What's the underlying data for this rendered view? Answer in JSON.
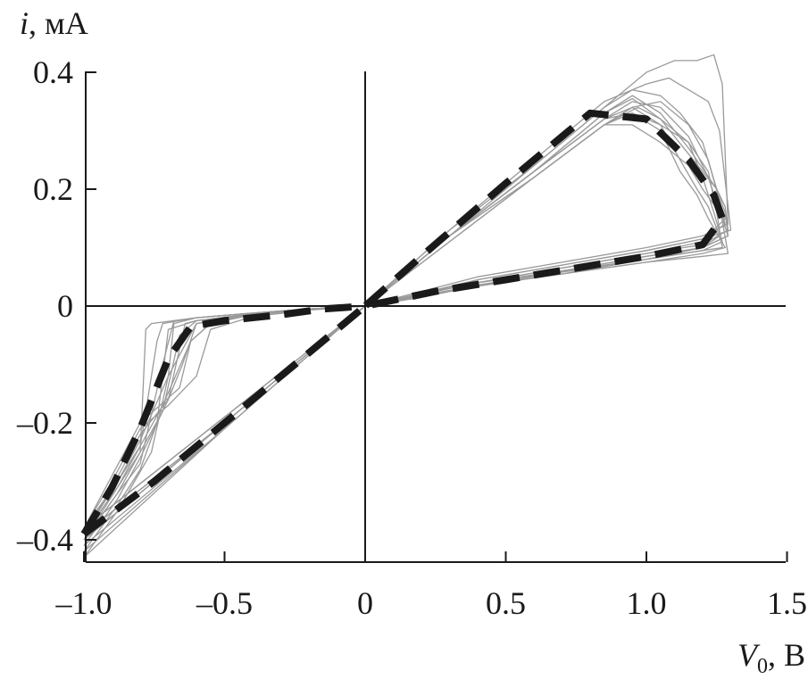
{
  "chart_data": {
    "type": "line",
    "title": "",
    "xlabel_var": "V",
    "xlabel_sub": "0",
    "xlabel_unit": ", В",
    "ylabel_var": "i",
    "ylabel_unit": ", мА",
    "xlim": [
      -1.0,
      1.5
    ],
    "ylim": [
      -0.44,
      0.4
    ],
    "x_ticks": [
      -1.0,
      -0.5,
      0,
      0.5,
      1.0,
      1.5
    ],
    "x_tick_labels": [
      "–1.0",
      "–0.5",
      "0",
      "0.5",
      "1.0",
      "1.5"
    ],
    "y_ticks": [
      -0.4,
      -0.2,
      0,
      0.2,
      0.4
    ],
    "y_tick_labels": [
      "–0.4",
      "–0.2",
      "0",
      "0.2",
      "0.4"
    ],
    "grid": false,
    "legend": "none",
    "colors": {
      "traces": "#9a9a9a",
      "mean": "#1a1a1a",
      "axes": "#1a1a1a"
    },
    "series": [
      {
        "style": "dashed-bold",
        "x": [
          -1.0,
          -0.9,
          -0.8,
          -0.7,
          -0.62,
          -0.5,
          -0.3,
          -0.15,
          0,
          0.2,
          0.5,
          0.8,
          1.0,
          1.15,
          1.24,
          1.27,
          1.2,
          1.0,
          0.75,
          0.5,
          0.25,
          0,
          -0.25,
          -0.5,
          -0.75,
          -1.0
        ],
        "y": [
          -0.39,
          -0.31,
          -0.21,
          -0.09,
          -0.035,
          -0.025,
          -0.015,
          -0.005,
          0,
          0.085,
          0.21,
          0.33,
          0.32,
          0.25,
          0.19,
          0.15,
          0.105,
          0.085,
          0.065,
          0.045,
          0.025,
          0,
          -0.1,
          -0.2,
          -0.3,
          -0.39
        ]
      },
      {
        "style": "thin-gray",
        "x": [
          -1.0,
          -0.88,
          -0.8,
          -0.74,
          -0.72,
          -0.6,
          -0.4,
          -0.2,
          0,
          0.3,
          0.6,
          0.85,
          0.95,
          1.05,
          1.15,
          1.25,
          1.28,
          1.29,
          1.2,
          1.0,
          0.7,
          0.4,
          0.2,
          0,
          -0.5,
          -1.0
        ],
        "y": [
          -0.39,
          -0.3,
          -0.24,
          -0.06,
          -0.03,
          -0.02,
          -0.012,
          -0.005,
          0,
          0.12,
          0.23,
          0.33,
          0.36,
          0.33,
          0.27,
          0.2,
          0.16,
          0.12,
          0.1,
          0.085,
          0.06,
          0.035,
          0.018,
          0,
          -0.2,
          -0.39
        ]
      },
      {
        "style": "thin-gray",
        "x": [
          -1.0,
          -0.88,
          -0.8,
          -0.78,
          -0.76,
          -0.6,
          -0.4,
          -0.2,
          0,
          0.3,
          0.6,
          0.85,
          0.95,
          1.05,
          1.15,
          1.25,
          1.28,
          1.29,
          1.2,
          1.0,
          0.7,
          0.4,
          0.2,
          0,
          -0.5,
          -1.0
        ],
        "y": [
          -0.4,
          -0.31,
          -0.25,
          -0.04,
          -0.03,
          -0.02,
          -0.012,
          -0.005,
          0,
          0.12,
          0.23,
          0.33,
          0.355,
          0.32,
          0.26,
          0.2,
          0.17,
          0.13,
          0.105,
          0.09,
          0.065,
          0.04,
          0.02,
          0,
          -0.2,
          -0.4
        ]
      },
      {
        "style": "thin-gray",
        "x": [
          -1.0,
          -0.88,
          -0.8,
          -0.7,
          -0.68,
          -0.6,
          -0.4,
          -0.2,
          0,
          0.3,
          0.6,
          0.85,
          0.95,
          1.05,
          1.15,
          1.22,
          1.25,
          1.27,
          1.2,
          1.0,
          0.7,
          0.4,
          0.2,
          0,
          -0.5,
          -1.0
        ],
        "y": [
          -0.38,
          -0.3,
          -0.23,
          -0.12,
          -0.03,
          -0.02,
          -0.012,
          -0.005,
          0,
          0.12,
          0.23,
          0.32,
          0.33,
          0.31,
          0.28,
          0.23,
          0.16,
          0.1,
          0.095,
          0.08,
          0.055,
          0.035,
          0.015,
          0,
          -0.19,
          -0.38
        ]
      },
      {
        "style": "thin-gray",
        "x": [
          -1.0,
          -0.9,
          -0.8,
          -0.66,
          -0.62,
          -0.55,
          -0.4,
          -0.2,
          0,
          0.3,
          0.6,
          0.85,
          0.95,
          1.05,
          1.15,
          1.2,
          1.23,
          1.28,
          1.2,
          1.0,
          0.7,
          0.4,
          0.2,
          0,
          -0.5,
          -1.0
        ],
        "y": [
          -0.38,
          -0.29,
          -0.2,
          -0.14,
          -0.06,
          -0.03,
          -0.015,
          -0.005,
          0,
          0.11,
          0.22,
          0.31,
          0.31,
          0.28,
          0.24,
          0.2,
          0.18,
          0.15,
          0.11,
          0.09,
          0.065,
          0.04,
          0.02,
          0,
          -0.19,
          -0.38
        ]
      },
      {
        "style": "thin-gray",
        "x": [
          -1.0,
          -0.88,
          -0.8,
          -0.7,
          -0.64,
          -0.6,
          -0.4,
          -0.2,
          0,
          0.3,
          0.6,
          0.85,
          0.95,
          1.05,
          1.12,
          1.2,
          1.25,
          1.29,
          1.2,
          1.0,
          0.7,
          0.4,
          0.2,
          0,
          -0.5,
          -1.0
        ],
        "y": [
          -0.41,
          -0.33,
          -0.26,
          -0.16,
          -0.03,
          -0.025,
          -0.015,
          -0.006,
          0,
          0.13,
          0.24,
          0.34,
          0.37,
          0.36,
          0.33,
          0.28,
          0.2,
          0.09,
          0.085,
          0.075,
          0.055,
          0.035,
          0.015,
          0,
          -0.21,
          -0.41
        ]
      },
      {
        "style": "thin-gray",
        "x": [
          -1.0,
          -0.88,
          -0.8,
          -0.72,
          -0.68,
          -0.6,
          -0.4,
          -0.2,
          0,
          0.3,
          0.6,
          0.85,
          0.95,
          1.05,
          1.15,
          1.22,
          1.27,
          1.29,
          1.2,
          1.0,
          0.7,
          0.4,
          0.2,
          0,
          -0.5,
          -1.0
        ],
        "y": [
          -0.4,
          -0.32,
          -0.27,
          -0.1,
          -0.025,
          -0.02,
          -0.012,
          -0.005,
          0,
          0.12,
          0.23,
          0.32,
          0.35,
          0.34,
          0.29,
          0.22,
          0.15,
          0.12,
          0.1,
          0.085,
          0.06,
          0.035,
          0.018,
          0,
          -0.2,
          -0.4
        ]
      },
      {
        "style": "thin-gray",
        "x": [
          -1.0,
          -0.9,
          -0.8,
          -0.7,
          -0.65,
          -0.6,
          -0.4,
          -0.2,
          0,
          0.3,
          0.6,
          0.85,
          0.95,
          1.05,
          1.15,
          1.22,
          1.26,
          1.28,
          1.2,
          1.0,
          0.7,
          0.4,
          0.2,
          0,
          -0.5,
          -1.0
        ],
        "y": [
          -0.39,
          -0.31,
          -0.22,
          -0.16,
          -0.1,
          -0.03,
          -0.015,
          -0.006,
          0,
          0.12,
          0.22,
          0.31,
          0.34,
          0.35,
          0.31,
          0.25,
          0.18,
          0.14,
          0.115,
          0.095,
          0.07,
          0.045,
          0.02,
          0,
          -0.2,
          -0.39
        ]
      },
      {
        "style": "thin-gray",
        "x": [
          -1.0,
          -0.9,
          -0.8,
          -0.7,
          -0.6,
          -0.55,
          -0.4,
          -0.2,
          0,
          0.3,
          0.6,
          0.85,
          0.97,
          1.05,
          1.15,
          1.2,
          1.24,
          1.27,
          1.2,
          1.0,
          0.7,
          0.4,
          0.2,
          0,
          -0.5,
          -1.0
        ],
        "y": [
          -0.38,
          -0.3,
          -0.21,
          -0.17,
          -0.12,
          -0.04,
          -0.018,
          -0.007,
          0,
          0.11,
          0.22,
          0.31,
          0.34,
          0.32,
          0.28,
          0.22,
          0.16,
          0.11,
          0.095,
          0.08,
          0.06,
          0.04,
          0.02,
          0,
          -0.19,
          -0.38
        ]
      },
      {
        "style": "thin-gray",
        "x": [
          -1.0,
          -0.88,
          -0.8,
          -0.74,
          -0.7,
          -0.6,
          -0.4,
          -0.2,
          0,
          0.3,
          0.6,
          0.85,
          1.0,
          1.08,
          1.15,
          1.22,
          1.26,
          1.3,
          1.2,
          1.0,
          0.7,
          0.4,
          0.2,
          0,
          -0.5,
          -1.0
        ],
        "y": [
          -0.42,
          -0.34,
          -0.28,
          -0.2,
          -0.04,
          -0.025,
          -0.015,
          -0.006,
          0,
          0.13,
          0.25,
          0.35,
          0.38,
          0.39,
          0.37,
          0.35,
          0.3,
          0.13,
          0.115,
          0.095,
          0.07,
          0.045,
          0.022,
          0,
          -0.21,
          -0.42
        ]
      },
      {
        "style": "thin-gray",
        "x": [
          -1.0,
          -0.88,
          -0.8,
          -0.72,
          -0.66,
          -0.6,
          -0.4,
          -0.2,
          0,
          0.3,
          0.6,
          0.85,
          1.0,
          1.1,
          1.18,
          1.24,
          1.27,
          1.29,
          1.2,
          1.0,
          0.7,
          0.4,
          0.2,
          0,
          -0.5,
          -1.0
        ],
        "y": [
          -0.4,
          -0.32,
          -0.25,
          -0.18,
          -0.05,
          -0.025,
          -0.013,
          -0.005,
          0,
          0.12,
          0.24,
          0.34,
          0.4,
          0.42,
          0.42,
          0.43,
          0.38,
          0.14,
          0.12,
          0.1,
          0.075,
          0.05,
          0.025,
          0,
          -0.2,
          -0.4
        ]
      },
      {
        "style": "thin-gray",
        "x": [
          -1.0,
          -0.88,
          -0.8,
          -0.72,
          -0.62,
          -0.55,
          -0.4,
          -0.2,
          0,
          0.3,
          0.6,
          0.85,
          0.95,
          1.05,
          1.12,
          1.18,
          1.22,
          1.26,
          1.2,
          1.0,
          0.7,
          0.4,
          0.2,
          0,
          -0.5,
          -1.0
        ],
        "y": [
          -0.39,
          -0.31,
          -0.24,
          -0.17,
          -0.06,
          -0.03,
          -0.014,
          -0.005,
          0,
          0.12,
          0.23,
          0.32,
          0.34,
          0.31,
          0.25,
          0.2,
          0.17,
          0.12,
          0.1,
          0.08,
          0.058,
          0.036,
          0.017,
          0,
          -0.2,
          -0.39
        ]
      },
      {
        "style": "thin-gray",
        "x": [
          -1.0,
          -0.88,
          -0.82,
          -0.76,
          -0.7,
          -0.6,
          -0.4,
          -0.2,
          0,
          0.3,
          0.6,
          0.85,
          0.95,
          1.05,
          1.12,
          1.18,
          1.22,
          1.28,
          1.2,
          1.0,
          0.7,
          0.4,
          0.2,
          0,
          -0.5,
          -1.0
        ],
        "y": [
          -0.43,
          -0.35,
          -0.3,
          -0.25,
          -0.12,
          -0.03,
          -0.015,
          -0.006,
          0,
          0.12,
          0.22,
          0.31,
          0.33,
          0.3,
          0.23,
          0.19,
          0.15,
          0.1,
          0.09,
          0.075,
          0.055,
          0.034,
          0.016,
          0,
          -0.21,
          -0.43
        ]
      }
    ]
  }
}
